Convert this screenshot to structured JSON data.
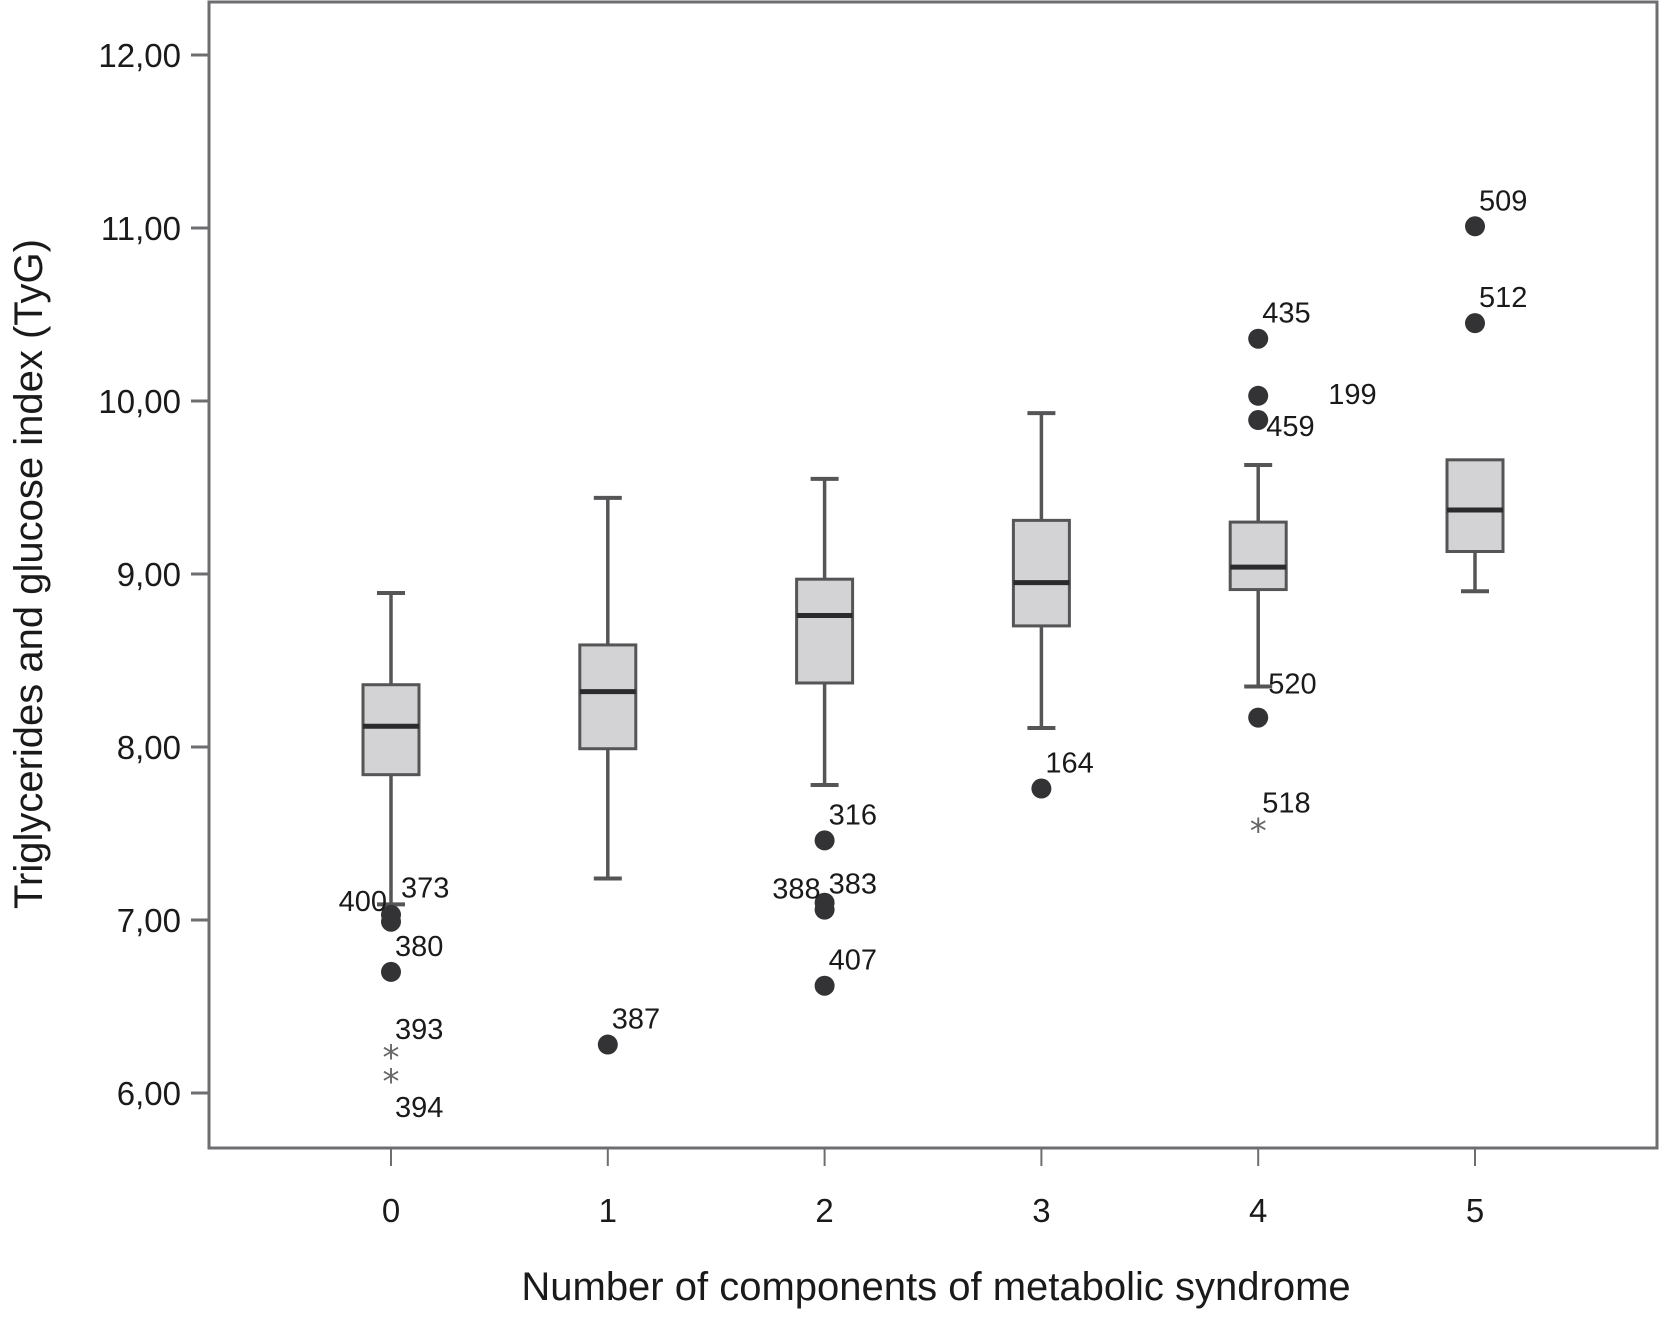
{
  "chart_data": {
    "type": "boxplot",
    "title": "",
    "xlabel": "Number of components of metabolic syndrome",
    "ylabel": "Triglycerides and glucose index (TyG)",
    "ylim": [
      5.7,
      12.35
    ],
    "yticks": [
      6,
      7,
      8,
      9,
      10,
      11,
      12
    ],
    "ytick_labels": [
      "6,00",
      "7,00",
      "8,00",
      "9,00",
      "10,00",
      "11,00",
      "12,00"
    ],
    "categories": [
      "0",
      "1",
      "2",
      "3",
      "4",
      "5"
    ],
    "grid": false,
    "legend": "none",
    "colors": {
      "box_fill": "#d3d3d5",
      "box_stroke": "#555557",
      "median": "#2b2b2d",
      "outlier": "#333335",
      "extreme": "#666668",
      "frame": "#6e6e70"
    },
    "boxes": [
      {
        "category": "0",
        "whisker_low": 7.09,
        "q1": 7.84,
        "median": 8.12,
        "q3": 8.36,
        "whisker_high": 8.89,
        "outliers": [
          {
            "id": "400",
            "value": 7.03,
            "kind": "circle",
            "label_side": "left"
          },
          {
            "id": "373",
            "value": 6.99,
            "kind": "circle",
            "label_side": "right-up"
          },
          {
            "id": "380",
            "value": 6.7,
            "kind": "circle",
            "label_side": "right"
          },
          {
            "id": "393",
            "value": 6.22,
            "kind": "star",
            "label_side": "right"
          },
          {
            "id": "394",
            "value": 6.08,
            "kind": "star",
            "label_side": "below"
          }
        ]
      },
      {
        "category": "1",
        "whisker_low": 7.24,
        "q1": 7.99,
        "median": 8.32,
        "q3": 8.59,
        "whisker_high": 9.44,
        "outliers": [
          {
            "id": "387",
            "value": 6.28,
            "kind": "circle",
            "label_side": "right"
          }
        ]
      },
      {
        "category": "2",
        "whisker_low": 7.78,
        "q1": 8.37,
        "median": 8.76,
        "q3": 8.97,
        "whisker_high": 9.55,
        "outliers": [
          {
            "id": "316",
            "value": 7.46,
            "kind": "circle",
            "label_side": "right"
          },
          {
            "id": "388",
            "value": 7.1,
            "kind": "circle",
            "label_side": "left"
          },
          {
            "id": "383",
            "value": 7.06,
            "kind": "circle",
            "label_side": "right"
          },
          {
            "id": "407",
            "value": 6.62,
            "kind": "circle",
            "label_side": "right"
          }
        ]
      },
      {
        "category": "3",
        "whisker_low": 8.11,
        "q1": 8.7,
        "median": 8.95,
        "q3": 9.31,
        "whisker_high": 9.93,
        "outliers": [
          {
            "id": "164",
            "value": 7.76,
            "kind": "circle",
            "label_side": "right"
          }
        ]
      },
      {
        "category": "4",
        "whisker_low": 8.35,
        "q1": 8.91,
        "median": 9.04,
        "q3": 9.3,
        "whisker_high": 9.63,
        "outliers": [
          {
            "id": "435",
            "value": 10.36,
            "kind": "circle",
            "label_side": "right"
          },
          {
            "id": "199",
            "value": 10.03,
            "kind": "circle",
            "label_side": "far-right"
          },
          {
            "id": "459",
            "value": 9.89,
            "kind": "circle",
            "label_side": "right-tight"
          },
          {
            "id": "520",
            "value": 8.17,
            "kind": "circle",
            "label_side": "right-up"
          },
          {
            "id": "518",
            "value": 7.53,
            "kind": "star",
            "label_side": "right"
          }
        ]
      },
      {
        "category": "5",
        "whisker_low": 8.9,
        "q1": 9.13,
        "median": 9.37,
        "q3": 9.66,
        "whisker_high": 9.66,
        "outliers": [
          {
            "id": "509",
            "value": 11.01,
            "kind": "circle",
            "label_side": "right"
          },
          {
            "id": "512",
            "value": 10.45,
            "kind": "circle",
            "label_side": "right"
          }
        ]
      }
    ]
  }
}
